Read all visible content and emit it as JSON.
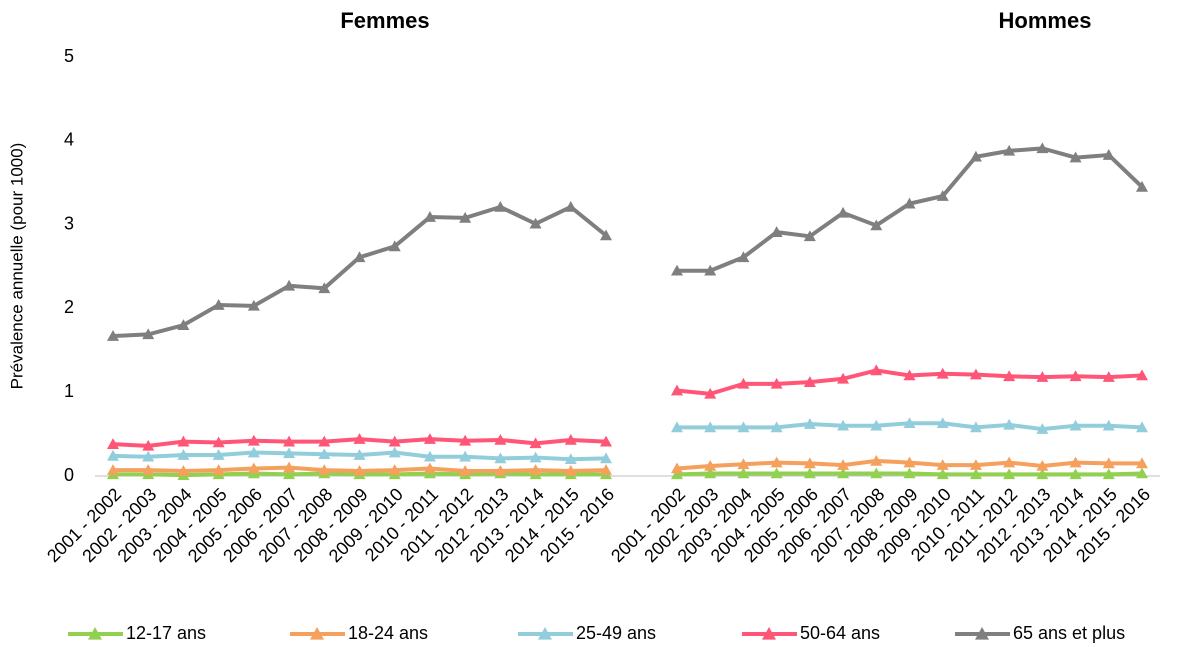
{
  "chart_data": {
    "type": "line",
    "y_label": "Prévalence annuelle (pour 1000)",
    "ylim": [
      0,
      5
    ],
    "yticks": [
      0,
      1,
      2,
      3,
      4,
      5
    ],
    "legend": "bottom",
    "series": [
      {
        "name": "12-17 ans",
        "color": "#92d050"
      },
      {
        "name": "18-24 ans",
        "color": "#f5a05c"
      },
      {
        "name": "25-49 ans",
        "color": "#92cddc"
      },
      {
        "name": "50-64 ans",
        "color": "#ff5577"
      },
      {
        "name": "65 ans et plus",
        "color": "#7f7f7f"
      }
    ],
    "panels": [
      {
        "title": "Femmes",
        "categories": [
          "2001 - 2002",
          "2002 - 2003",
          "2003 - 2004",
          "2004 - 2005",
          "2005 - 2006",
          "2006 - 2007",
          "2007 - 2008",
          "2008 - 2009",
          "2009 - 2010",
          "2010 - 2011",
          "2011 - 2012",
          "2012 - 2013",
          "2013 - 2014",
          "2014 - 2015",
          "2015 - 2016"
        ],
        "values": [
          [
            0.02,
            0.02,
            0.01,
            0.02,
            0.03,
            0.02,
            0.03,
            0.02,
            0.02,
            0.03,
            0.02,
            0.03,
            0.02,
            0.02,
            0.02
          ],
          [
            0.07,
            0.07,
            0.06,
            0.07,
            0.09,
            0.1,
            0.07,
            0.06,
            0.07,
            0.09,
            0.06,
            0.06,
            0.07,
            0.06,
            0.07
          ],
          [
            0.24,
            0.23,
            0.25,
            0.25,
            0.28,
            0.27,
            0.26,
            0.25,
            0.28,
            0.23,
            0.23,
            0.21,
            0.22,
            0.2,
            0.21
          ],
          [
            0.38,
            0.36,
            0.41,
            0.4,
            0.42,
            0.41,
            0.41,
            0.44,
            0.41,
            0.44,
            0.42,
            0.43,
            0.39,
            0.43,
            0.41
          ],
          [
            1.67,
            1.69,
            1.8,
            2.04,
            2.03,
            2.27,
            2.24,
            2.61,
            2.74,
            3.09,
            3.08,
            3.21,
            3.01,
            3.21,
            2.87
          ]
        ]
      },
      {
        "title": "Hommes",
        "categories": [
          "2001 - 2002",
          "2002 - 2003",
          "2003 - 2004",
          "2004 - 2005",
          "2005 - 2006",
          "2006 - 2007",
          "2007 - 2008",
          "2008 - 2009",
          "2009 - 2010",
          "2010 - 2011",
          "2011 - 2012",
          "2012 - 2013",
          "2013 - 2014",
          "2014 - 2015",
          "2015 - 2016"
        ],
        "values": [
          [
            0.02,
            0.03,
            0.03,
            0.03,
            0.03,
            0.03,
            0.03,
            0.03,
            0.02,
            0.02,
            0.02,
            0.02,
            0.02,
            0.02,
            0.03
          ],
          [
            0.09,
            0.12,
            0.14,
            0.16,
            0.15,
            0.13,
            0.18,
            0.16,
            0.13,
            0.13,
            0.16,
            0.12,
            0.16,
            0.15,
            0.15
          ],
          [
            0.58,
            0.58,
            0.58,
            0.58,
            0.62,
            0.6,
            0.6,
            0.63,
            0.63,
            0.58,
            0.61,
            0.56,
            0.6,
            0.6,
            0.58
          ],
          [
            1.02,
            0.98,
            1.1,
            1.1,
            1.12,
            1.16,
            1.26,
            1.2,
            1.22,
            1.21,
            1.19,
            1.18,
            1.19,
            1.18,
            1.2
          ],
          [
            2.45,
            2.45,
            2.61,
            2.91,
            2.86,
            3.14,
            2.99,
            3.25,
            3.34,
            3.81,
            3.88,
            3.91,
            3.8,
            3.83,
            3.45
          ]
        ]
      }
    ]
  }
}
